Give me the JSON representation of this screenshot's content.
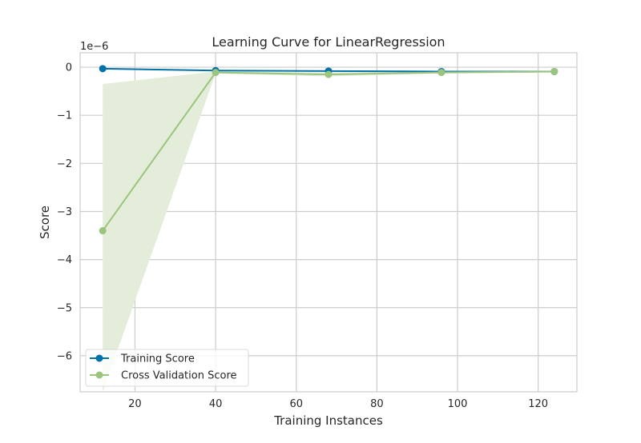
{
  "chart_data": {
    "type": "line",
    "title": "Learning Curve for LinearRegression",
    "xlabel": "Training Instances",
    "ylabel": "Score",
    "y_scale_label": "1e−6",
    "xlim": [
      6.4,
      129.6
    ],
    "ylim": [
      -6.75,
      0.3
    ],
    "xticks": [
      20,
      40,
      60,
      80,
      100,
      120
    ],
    "xtick_labels": [
      "20",
      "40",
      "60",
      "80",
      "100",
      "120"
    ],
    "yticks": [
      0,
      -1,
      -2,
      -3,
      -4,
      -5,
      -6
    ],
    "ytick_labels": [
      "0",
      "−1",
      "−2",
      "−3",
      "−4",
      "−5",
      "−6"
    ],
    "grid": true,
    "legend_position": "lower-left",
    "x": [
      12,
      40,
      68,
      96,
      124
    ],
    "series": [
      {
        "name": "Training Score",
        "color": "#0072a8",
        "values": [
          -0.03,
          -0.07,
          -0.08,
          -0.09,
          -0.09
        ],
        "band_lower": [
          -0.04,
          -0.08,
          -0.09,
          -0.1,
          -0.1
        ],
        "band_upper": [
          -0.02,
          -0.06,
          -0.07,
          -0.08,
          -0.08
        ]
      },
      {
        "name": "Cross Validation Score",
        "color": "#9bc47f",
        "band_color": "#e4edda",
        "values": [
          -3.4,
          -0.11,
          -0.15,
          -0.11,
          -0.09
        ],
        "band_lower": [
          -6.75,
          -0.13,
          -0.19,
          -0.13,
          -0.11
        ],
        "band_upper": [
          -0.35,
          -0.09,
          -0.11,
          -0.09,
          -0.07
        ]
      }
    ]
  }
}
